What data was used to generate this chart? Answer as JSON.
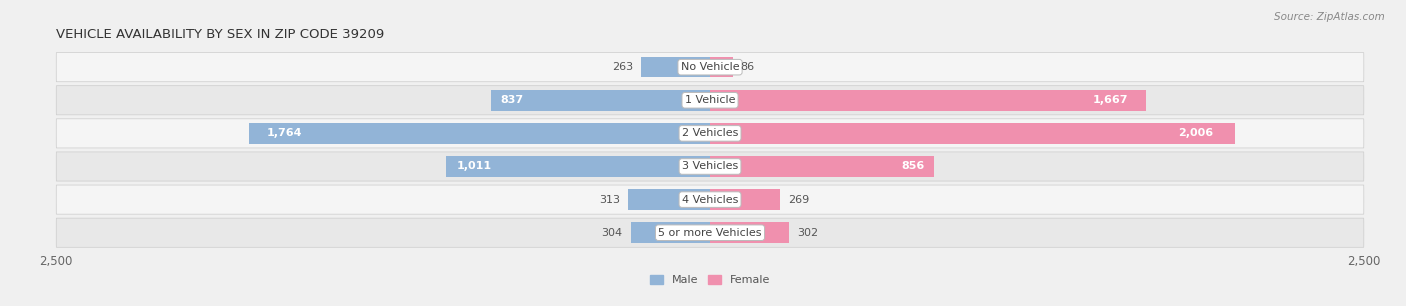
{
  "title": "VEHICLE AVAILABILITY BY SEX IN ZIP CODE 39209",
  "source": "Source: ZipAtlas.com",
  "categories": [
    "No Vehicle",
    "1 Vehicle",
    "2 Vehicles",
    "3 Vehicles",
    "4 Vehicles",
    "5 or more Vehicles"
  ],
  "male_values": [
    263,
    837,
    1764,
    1011,
    313,
    304
  ],
  "female_values": [
    86,
    1667,
    2006,
    856,
    269,
    302
  ],
  "male_color": "#92b4d7",
  "female_color": "#f090ae",
  "male_label": "Male",
  "female_label": "Female",
  "xlim": 2500,
  "bar_height": 0.62,
  "background_color": "#f0f0f0",
  "row_bg_even": "#f5f5f5",
  "row_bg_odd": "#e8e8e8",
  "title_fontsize": 9.5,
  "label_fontsize": 8.0,
  "value_fontsize": 8.0,
  "tick_fontsize": 8.5,
  "source_fontsize": 7.5,
  "inside_threshold": 500
}
